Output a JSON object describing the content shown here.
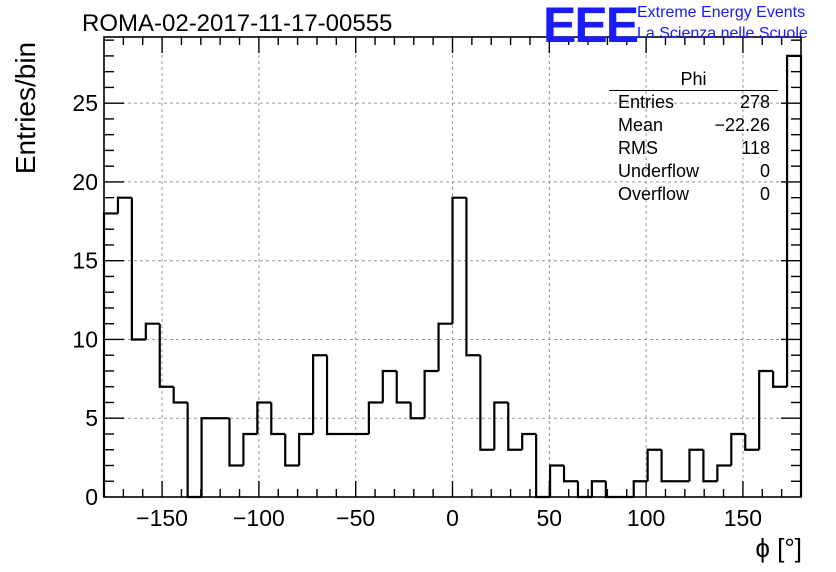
{
  "header": {
    "run_title": "ROMA-02-2017-11-17-00555",
    "logo_mark": "EEE",
    "logo_line1": "Extreme Energy Events",
    "logo_line2": "La Scienza nelle Scuole"
  },
  "stats_box": {
    "title": "Phi",
    "rows": [
      {
        "label": "Entries",
        "value": "278"
      },
      {
        "label": "Mean",
        "value": "−22.26"
      },
      {
        "label": "RMS",
        "value": "118"
      },
      {
        "label": "Underflow",
        "value": "0"
      },
      {
        "label": "Overflow",
        "value": "0"
      }
    ]
  },
  "chart_data": {
    "type": "bar",
    "style": "step-histogram",
    "xlabel": "ϕ [°]",
    "ylabel": "Entries/bin",
    "xlim": [
      -180,
      180
    ],
    "ylim": [
      0,
      29.2
    ],
    "bin_width": 7.2,
    "bin_low_edges": [
      -180,
      -172.8,
      -165.6,
      -158.4,
      -151.2,
      -144,
      -136.8,
      -129.6,
      -122.4,
      -115.2,
      -108,
      -100.8,
      -93.6,
      -86.4,
      -79.2,
      -72,
      -64.8,
      -57.6,
      -50.4,
      -43.2,
      -36,
      -28.8,
      -21.6,
      -14.4,
      -7.2,
      0,
      7.2,
      14.4,
      21.6,
      28.8,
      36,
      43.2,
      50.4,
      57.6,
      64.8,
      72,
      79.2,
      86.4,
      93.6,
      100.8,
      108,
      115.2,
      122.4,
      129.6,
      136.8,
      144,
      151.2,
      158.4,
      165.6,
      172.8
    ],
    "values": [
      18,
      19,
      10,
      11,
      7,
      6,
      0,
      5,
      5,
      2,
      4,
      6,
      4,
      2,
      4,
      9,
      4,
      4,
      4,
      6,
      8,
      6,
      5,
      8,
      11,
      19,
      9,
      3,
      6,
      3,
      4,
      0,
      2,
      1,
      0,
      1,
      0,
      0,
      1,
      3,
      1,
      1,
      3,
      1,
      2,
      4,
      3,
      8,
      7,
      28
    ],
    "x_ticks": [
      -150,
      -100,
      -50,
      0,
      50,
      100,
      150
    ],
    "x_tick_labels": [
      "−150",
      "−100",
      "−50",
      "0",
      "50",
      "100",
      "150"
    ],
    "y_ticks": [
      0,
      5,
      10,
      15,
      20,
      25
    ],
    "y_tick_labels": [
      "0",
      "5",
      "10",
      "15",
      "20",
      "25"
    ],
    "grid": true,
    "colors": {
      "line": "#000000",
      "grid": "#999999",
      "logo": "#1a1aff"
    }
  }
}
